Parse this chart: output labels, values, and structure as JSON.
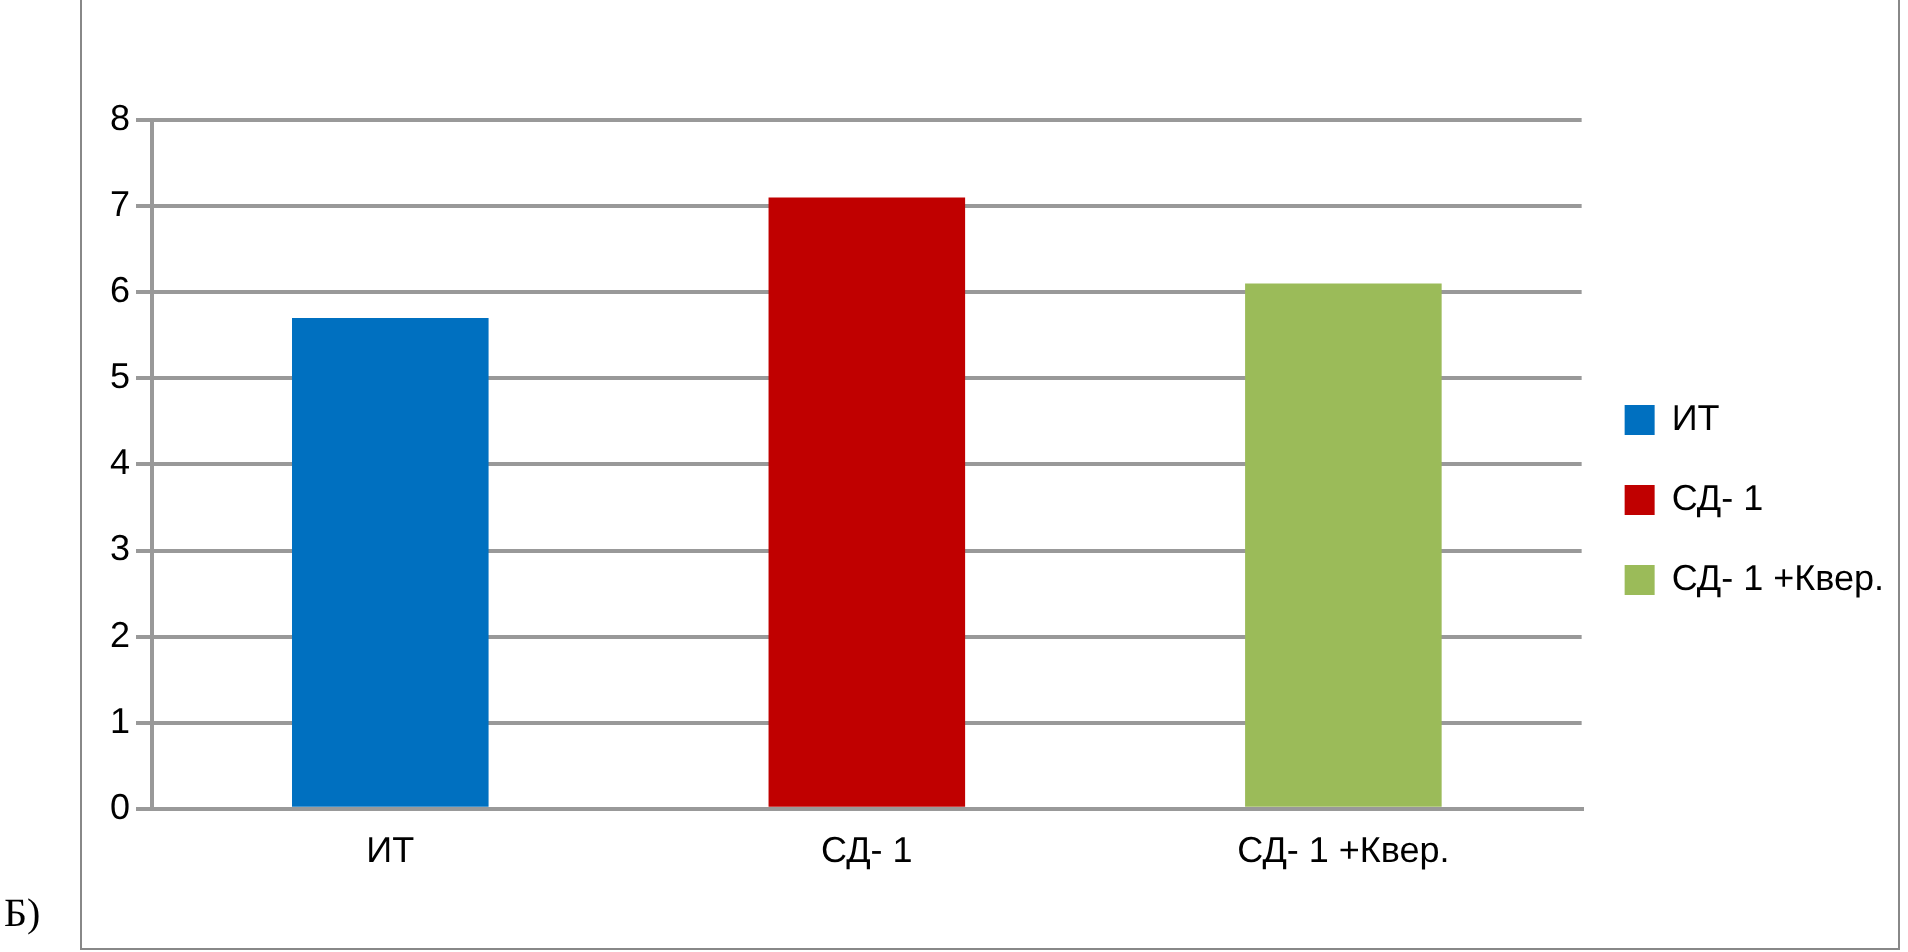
{
  "chart_data": {
    "type": "bar",
    "categories": [
      "ИТ",
      "СД- 1",
      "СД- 1 +Квер."
    ],
    "series": [
      {
        "name": "ИТ",
        "color": "#0070c0",
        "values": [
          5.7,
          null,
          null
        ]
      },
      {
        "name": "СД- 1",
        "color": "#c00000",
        "values": [
          null,
          7.1,
          null
        ]
      },
      {
        "name": "СД- 1 +Квер.",
        "color": "#9bbb59",
        "values": [
          null,
          null,
          6.1
        ]
      }
    ],
    "ylim": [
      0,
      8
    ],
    "yticks": [
      0,
      1,
      2,
      3,
      4,
      5,
      6,
      7,
      8
    ],
    "grid": "y",
    "legend": "right",
    "annotations": [
      "Б)"
    ]
  }
}
